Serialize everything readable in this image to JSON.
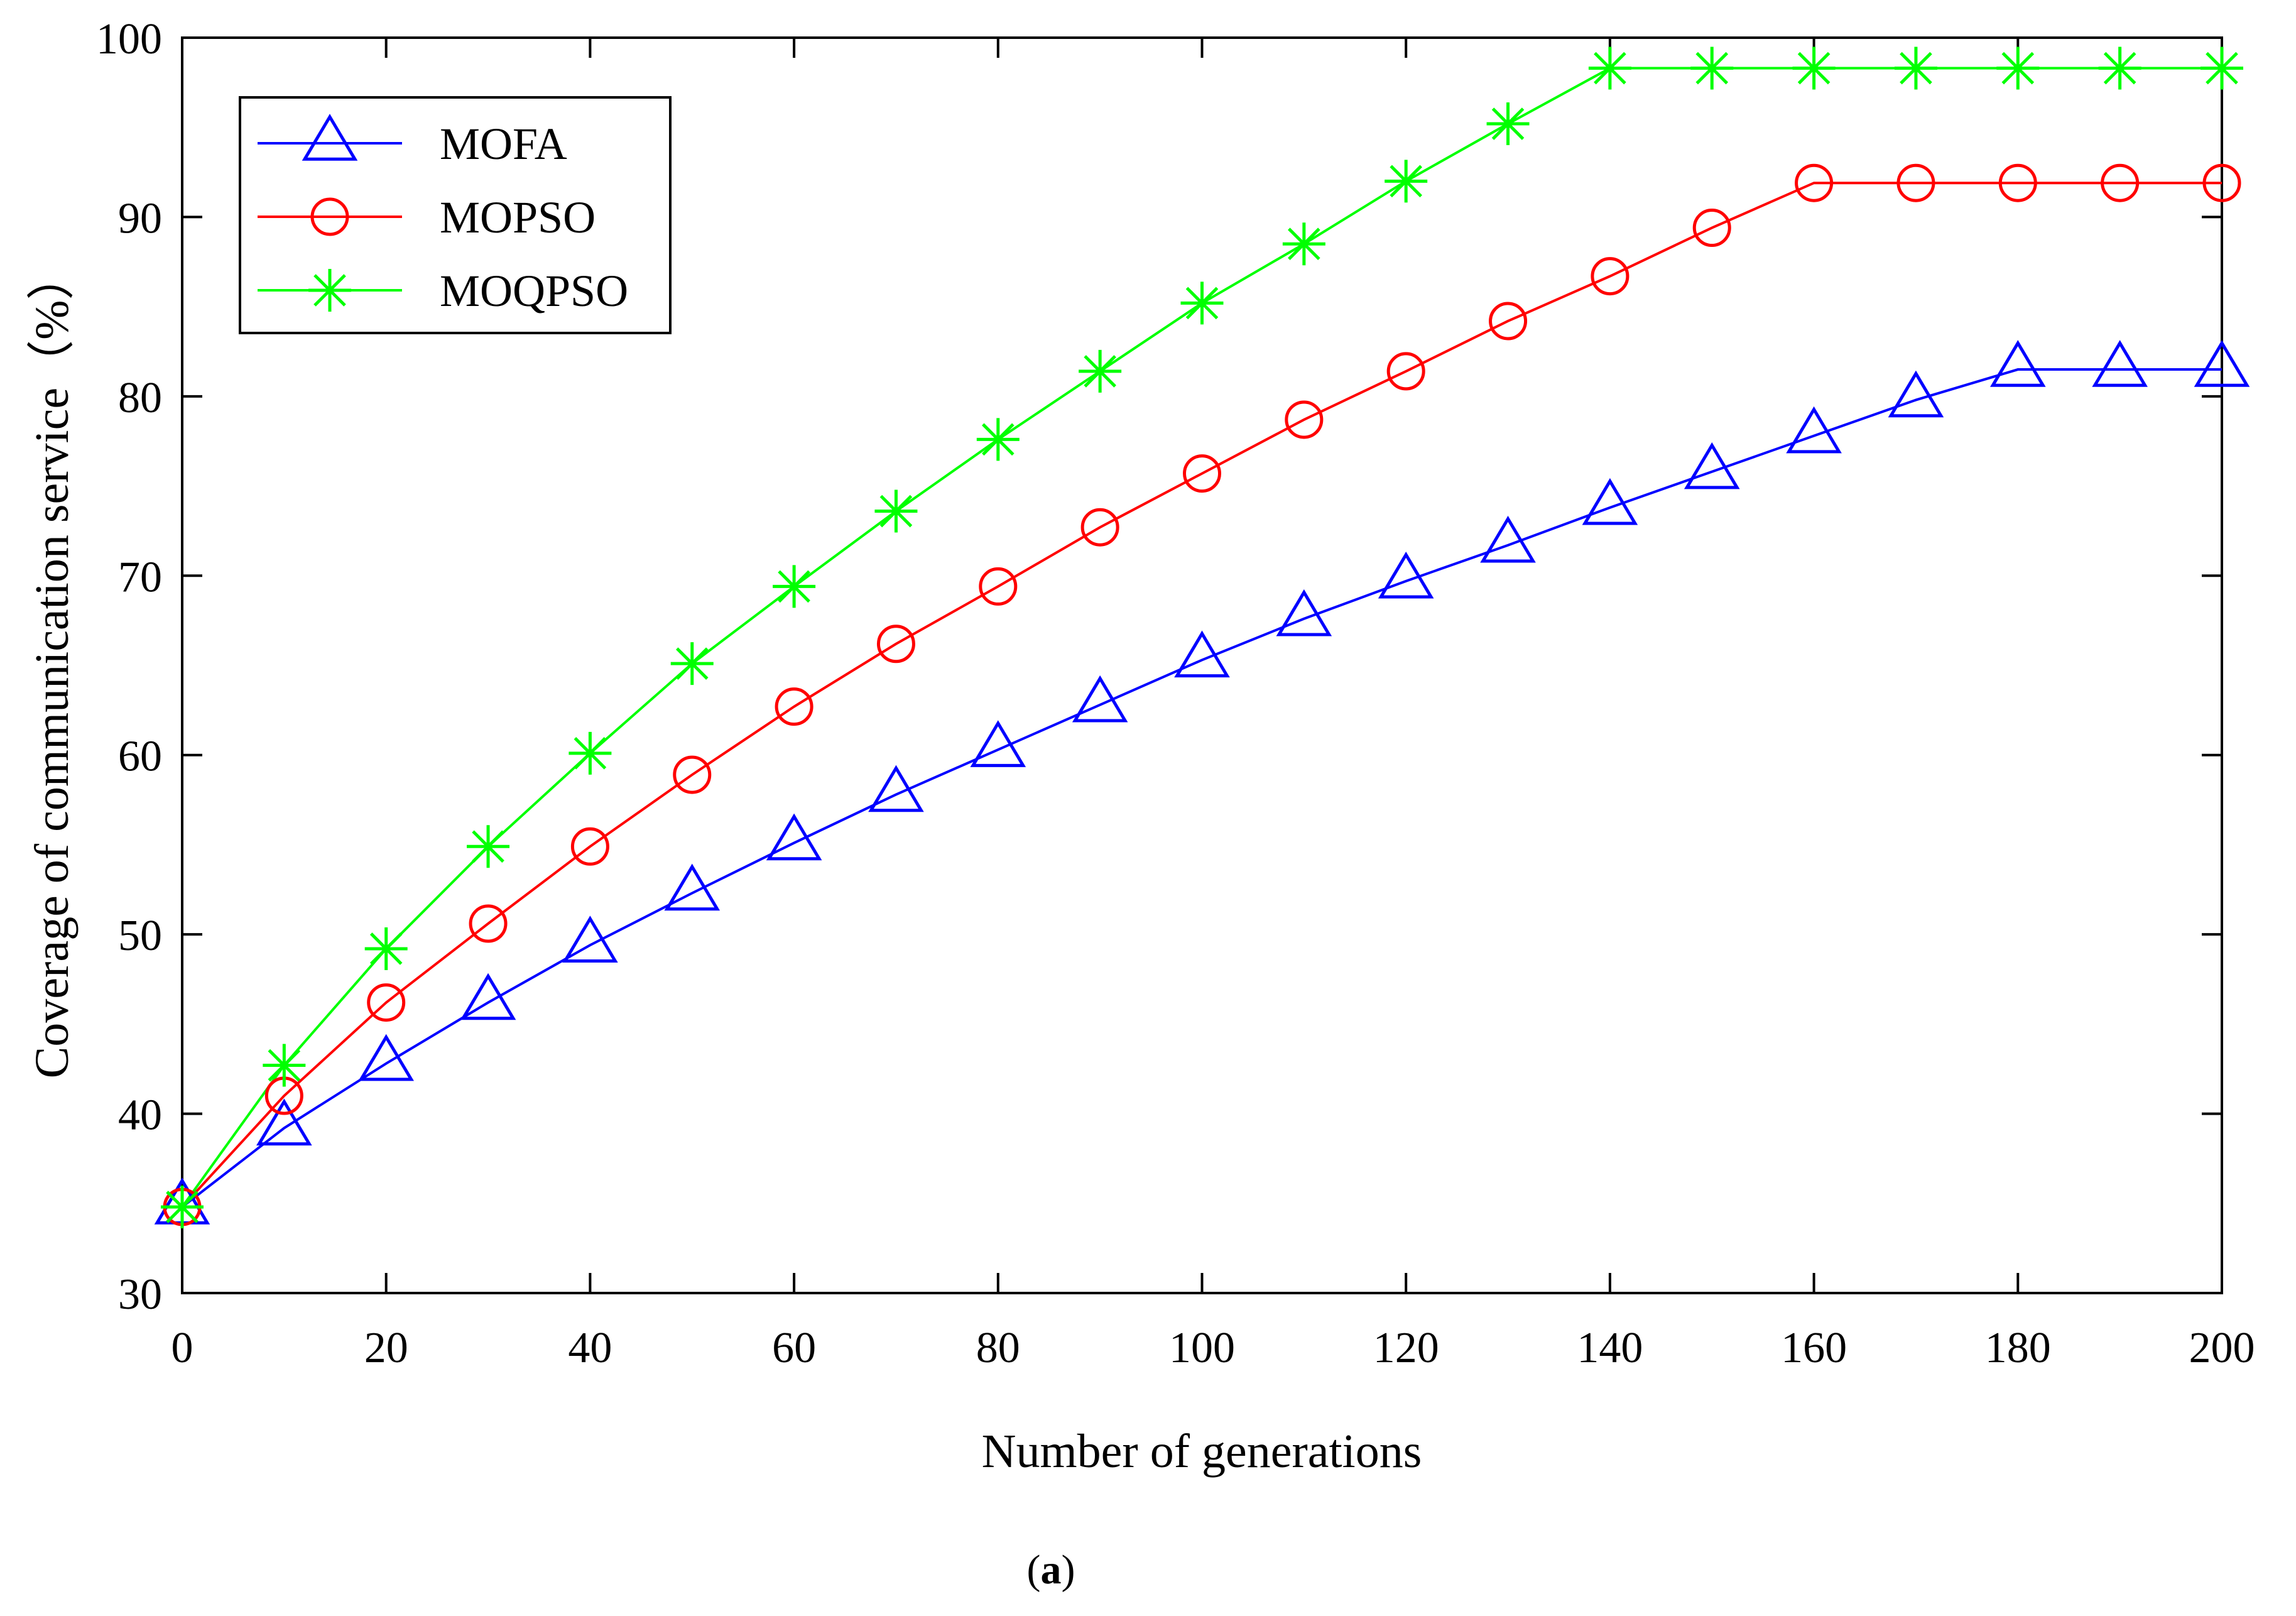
{
  "chart_data": {
    "type": "line",
    "title": "",
    "xlabel": "Number of generations",
    "ylabel": "Coverage of communication service（%）",
    "xlim": [
      0,
      200
    ],
    "ylim": [
      30,
      100
    ],
    "xticks": [
      0,
      20,
      40,
      60,
      80,
      100,
      120,
      140,
      160,
      180,
      200
    ],
    "yticks": [
      30,
      40,
      50,
      60,
      70,
      80,
      90,
      100
    ],
    "xtick_labels": [
      "0",
      "20",
      "40",
      "60",
      "80",
      "100",
      "120",
      "140",
      "160",
      "180",
      "200"
    ],
    "ytick_labels": [
      "30",
      "40",
      "50",
      "60",
      "70",
      "80",
      "90",
      "100"
    ],
    "grid": false,
    "legend_position": "top-left",
    "x": [
      0,
      10,
      20,
      30,
      40,
      50,
      60,
      70,
      80,
      90,
      100,
      110,
      120,
      130,
      140,
      150,
      160,
      170,
      180,
      190,
      200
    ],
    "series": [
      {
        "name": "MOFA",
        "color": "#0000ff",
        "marker": "triangle",
        "values": [
          34.8,
          39.2,
          42.8,
          46.2,
          49.4,
          52.3,
          55.1,
          57.8,
          60.3,
          62.8,
          65.3,
          67.6,
          69.7,
          71.7,
          73.8,
          75.8,
          77.8,
          79.8,
          81.5,
          81.5,
          81.5
        ]
      },
      {
        "name": "MOPSO",
        "color": "#ff0000",
        "marker": "circle",
        "values": [
          34.8,
          41.0,
          46.2,
          50.6,
          54.9,
          58.9,
          62.7,
          66.2,
          69.4,
          72.7,
          75.7,
          78.7,
          81.4,
          84.2,
          86.7,
          89.4,
          91.9,
          91.9,
          91.9,
          91.9,
          91.9
        ]
      },
      {
        "name": "MOQPSO",
        "color": "#00ff00",
        "marker": "asterisk",
        "values": [
          34.8,
          42.7,
          49.2,
          54.9,
          60.1,
          65.1,
          69.4,
          73.6,
          77.6,
          81.4,
          85.2,
          88.5,
          92.0,
          95.2,
          98.3,
          98.3,
          98.3,
          98.3,
          98.3,
          98.3,
          98.3
        ]
      }
    ]
  },
  "caption": {
    "open": "(",
    "letter": "a",
    "close": ")"
  }
}
